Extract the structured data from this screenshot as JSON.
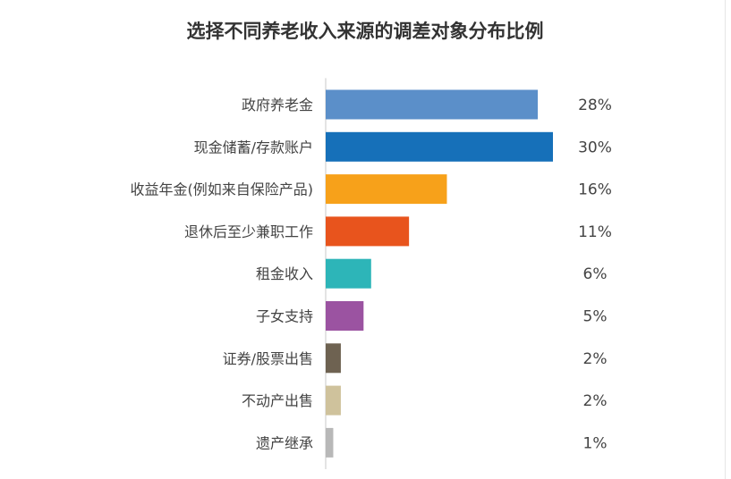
{
  "chart_data": {
    "type": "bar",
    "orientation": "horizontal",
    "title": "选择不同养老收入来源的调差对象分布比例",
    "categories": [
      "政府养老金",
      "现金储蓄/存款账户",
      "收益年金(例如来自保险产品)",
      "退休后至少兼职工作",
      "租金收入",
      "子女支持",
      "证券/股票出售",
      "不动产出售",
      "遗产继承"
    ],
    "values": [
      28,
      30,
      16,
      11,
      6,
      5,
      2,
      2,
      1
    ],
    "value_labels": [
      "28%",
      "30%",
      "16%",
      "11%",
      "6%",
      "5%",
      "2%",
      "2%",
      "1%"
    ],
    "colors": [
      "#5b8fc9",
      "#1670b9",
      "#f7a11a",
      "#e8541d",
      "#2db5b8",
      "#9b53a1",
      "#6e6251",
      "#cfc29c",
      "#b8b8b8"
    ],
    "unit": "%",
    "xlim": [
      0,
      30
    ],
    "grid": false,
    "legend": "none"
  }
}
